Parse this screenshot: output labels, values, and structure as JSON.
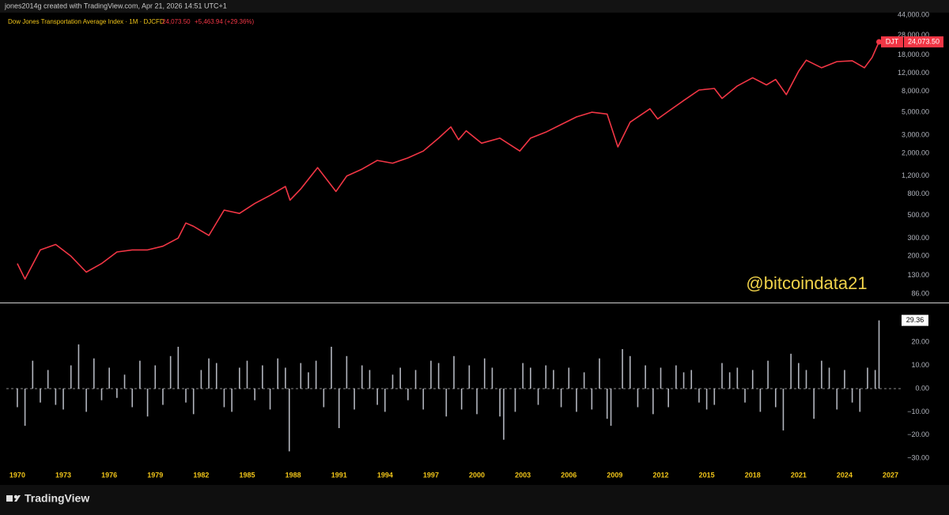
{
  "header": "jones2014g created with TradingView.com, Apr 21, 2026 14:51 UTC+1",
  "footer": "TradingView",
  "watermark": "@bitcoindata21",
  "chart_data": [
    {
      "type": "line",
      "legend_title": "Dow Jones Transportation Average Index · 1M · DJCFD",
      "legend_last": "24,073.50",
      "legend_change": "+5,463.94 (+29.36%)",
      "symbol": "DJT",
      "last_label": "24,073.50",
      "color": "#f23645",
      "log_scale": true,
      "xlim": [
        1969.28,
        2027.72
      ],
      "ylim": [
        71,
        46300
      ],
      "yticks": [
        {
          "value": 44000,
          "label": "44,000.00"
        },
        {
          "value": 28000,
          "label": "28,000.00"
        },
        {
          "value": 18000,
          "label": "18,000.00"
        },
        {
          "value": 12000,
          "label": "12,000.00"
        },
        {
          "value": 8000,
          "label": "8,000.00"
        },
        {
          "value": 5000,
          "label": "5,000.00"
        },
        {
          "value": 3000,
          "label": "3,000.00"
        },
        {
          "value": 2000,
          "label": "2,000.00"
        },
        {
          "value": 1200,
          "label": "1,200.00"
        },
        {
          "value": 800,
          "label": "800.00"
        },
        {
          "value": 500,
          "label": "500.00"
        },
        {
          "value": 300,
          "label": "300.00"
        },
        {
          "value": 200,
          "label": "200.00"
        },
        {
          "value": 130,
          "label": "130.00"
        },
        {
          "value": 86,
          "label": "86.00"
        }
      ],
      "x": [
        1970.0,
        1970.5,
        1971.5,
        1972.5,
        1973.5,
        1974.5,
        1975.5,
        1976.5,
        1977.5,
        1978.5,
        1979.5,
        1980.5,
        1981.0,
        1981.5,
        1982.5,
        1983.5,
        1984.5,
        1985.5,
        1986.5,
        1987.5,
        1987.8,
        1988.5,
        1989.6,
        1990.8,
        1991.5,
        1992.5,
        1993.5,
        1994.5,
        1995.5,
        1996.5,
        1997.5,
        1998.3,
        1998.8,
        1999.3,
        2000.3,
        2001.5,
        2002.8,
        2003.5,
        2004.5,
        2005.5,
        2006.5,
        2007.5,
        2008.5,
        2009.2,
        2010.0,
        2011.3,
        2011.8,
        2012.5,
        2013.5,
        2014.5,
        2015.5,
        2016.0,
        2017.0,
        2018.0,
        2018.9,
        2019.5,
        2020.2,
        2021.0,
        2021.5,
        2022.5,
        2023.5,
        2024.5,
        2025.3,
        2025.8,
        2026.25
      ],
      "values": [
        170,
        120,
        230,
        260,
        200,
        140,
        170,
        220,
        230,
        230,
        250,
        300,
        420,
        390,
        318,
        560,
        520,
        650,
        780,
        950,
        700,
        900,
        1450,
        850,
        1200,
        1400,
        1700,
        1600,
        1800,
        2100,
        2800,
        3600,
        2700,
        3300,
        2500,
        2800,
        2100,
        2800,
        3200,
        3800,
        4500,
        5000,
        4800,
        2300,
        4000,
        5400,
        4300,
        5100,
        6500,
        8200,
        8500,
        6800,
        9000,
        10800,
        9200,
        10400,
        7400,
        12500,
        16000,
        13500,
        15500,
        15800,
        13500,
        17000,
        24073.5
      ]
    },
    {
      "type": "histogram",
      "color": "#b2b5be",
      "xlim": [
        1969.28,
        2027.72
      ],
      "ylim": [
        -34,
        36.7
      ],
      "yticks": [
        {
          "value": 20,
          "label": "20.00"
        },
        {
          "value": 10,
          "label": "10.00"
        },
        {
          "value": 0,
          "label": "0.00"
        },
        {
          "value": -10,
          "label": "−10.00"
        },
        {
          "value": -20,
          "label": "−20.00"
        },
        {
          "value": -30,
          "label": "−30.00"
        }
      ],
      "xticks": [
        1970,
        1973,
        1976,
        1979,
        1982,
        1985,
        1988,
        1991,
        1994,
        1997,
        2000,
        2003,
        2006,
        2009,
        2012,
        2015,
        2018,
        2021,
        2024,
        2027
      ],
      "x": [
        1970,
        1970.5,
        1971,
        1971.5,
        1972,
        1972.5,
        1973,
        1973.5,
        1974,
        1974.5,
        1975,
        1975.5,
        1976,
        1976.5,
        1977,
        1977.5,
        1978,
        1978.5,
        1979,
        1979.5,
        1980,
        1980.5,
        1981,
        1981.5,
        1982,
        1982.5,
        1983,
        1983.5,
        1984,
        1984.5,
        1985,
        1985.5,
        1986,
        1986.5,
        1987,
        1987.5,
        1987.75,
        1988.5,
        1989,
        1989.5,
        1990,
        1990.5,
        1991,
        1991.5,
        1992,
        1992.5,
        1993,
        1993.5,
        1994,
        1994.5,
        1995,
        1995.5,
        1996,
        1996.5,
        1997,
        1997.5,
        1998,
        1998.5,
        1999,
        1999.5,
        2000,
        2000.5,
        2001,
        2001.5,
        2001.75,
        2002.5,
        2003,
        2003.5,
        2004,
        2004.5,
        2005,
        2005.5,
        2006,
        2006.5,
        2007,
        2007.5,
        2008,
        2008.5,
        2008.75,
        2009.5,
        2010,
        2010.5,
        2011,
        2011.5,
        2012,
        2012.5,
        2013,
        2013.5,
        2014,
        2014.5,
        2015,
        2015.5,
        2016,
        2016.5,
        2017,
        2017.5,
        2018,
        2018.5,
        2019,
        2019.5,
        2020,
        2020.5,
        2021,
        2021.5,
        2022,
        2022.5,
        2023,
        2023.5,
        2024,
        2024.5,
        2025,
        2025.5,
        2026,
        2026.25
      ],
      "values": [
        -8,
        -16,
        12,
        -6,
        8,
        -7,
        -9,
        10,
        19,
        -10,
        13,
        -5,
        9,
        -4,
        6,
        -8,
        12,
        -12,
        10,
        -7,
        14,
        18,
        -6,
        -11,
        8,
        13,
        11,
        -8,
        -10,
        9,
        12,
        -5,
        10,
        -9,
        13,
        9,
        -27,
        11,
        7,
        12,
        -8,
        18,
        -17,
        14,
        -9,
        10,
        8,
        -7,
        -10,
        6,
        9,
        -5,
        8,
        -9,
        12,
        11,
        -12,
        14,
        -9,
        10,
        -11,
        13,
        9,
        -12,
        -22,
        -10,
        11,
        9,
        -7,
        10,
        8,
        -8,
        9,
        -10,
        7,
        -9,
        13,
        -13,
        -16,
        17,
        14,
        -8,
        10,
        -11,
        9,
        -8,
        10,
        7,
        8,
        -6,
        -9,
        -7,
        11,
        7,
        9,
        -6,
        8,
        -10,
        12,
        -8,
        -18,
        15,
        11,
        8,
        -13,
        12,
        9,
        -9,
        8,
        -6,
        -10,
        9,
        8,
        29.36
      ]
    }
  ]
}
